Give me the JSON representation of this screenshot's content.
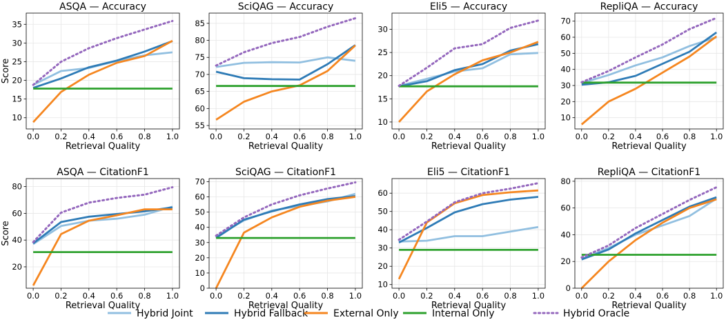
{
  "chart_data": [
    {
      "type": "line",
      "title": "ASQA — Accuracy",
      "xlabel": "Retrieval Quality",
      "ylabel": "Score",
      "x": [
        0.0,
        0.2,
        0.4,
        0.6,
        0.8,
        1.0
      ],
      "xticks": [
        "0.0",
        "0.2",
        "0.4",
        "0.6",
        "0.8",
        "1.0"
      ],
      "ylim": [
        7,
        38
      ],
      "yticks": [
        10,
        15,
        20,
        25,
        30,
        35
      ],
      "grid": true,
      "series": [
        {
          "name": "Hybrid Joint",
          "values": [
            18.8,
            22.5,
            23.3,
            25.2,
            26.7,
            27.5
          ]
        },
        {
          "name": "Hybrid Fallback",
          "values": [
            18.0,
            20.5,
            23.5,
            25.3,
            27.7,
            30.5
          ]
        },
        {
          "name": "External Only",
          "values": [
            8.8,
            16.9,
            21.5,
            24.7,
            26.5,
            30.6
          ]
        },
        {
          "name": "Internal Only",
          "values": [
            17.8,
            17.8,
            17.8,
            17.8,
            17.8,
            17.8
          ]
        },
        {
          "name": "Hybrid Oracle",
          "values": [
            18.8,
            25.0,
            28.6,
            31.3,
            33.6,
            35.9
          ]
        }
      ]
    },
    {
      "type": "line",
      "title": "SciQAG — Accuracy",
      "xlabel": "Retrieval Quality",
      "ylabel": "",
      "x": [
        0.0,
        0.2,
        0.4,
        0.6,
        0.8,
        1.0
      ],
      "xticks": [
        "0.0",
        "0.2",
        "0.4",
        "0.6",
        "0.8",
        "1.0"
      ],
      "ylim": [
        54,
        88
      ],
      "yticks": [
        55,
        60,
        65,
        70,
        75,
        80,
        85
      ],
      "grid": true,
      "series": [
        {
          "name": "Hybrid Joint",
          "values": [
            72.2,
            73.4,
            73.6,
            73.5,
            75.0,
            74.0
          ]
        },
        {
          "name": "Hybrid Fallback",
          "values": [
            70.8,
            68.9,
            68.6,
            68.5,
            73.0,
            78.6
          ]
        },
        {
          "name": "External Only",
          "values": [
            56.7,
            62.0,
            65.0,
            66.8,
            71.0,
            78.5
          ]
        },
        {
          "name": "Internal Only",
          "values": [
            66.6,
            66.6,
            66.6,
            66.6,
            66.6,
            66.6
          ]
        },
        {
          "name": "Hybrid Oracle",
          "values": [
            72.6,
            76.5,
            79.2,
            81.0,
            84.0,
            86.5
          ]
        }
      ]
    },
    {
      "type": "line",
      "title": "Eli5 — Accuracy",
      "xlabel": "Retrieval Quality",
      "ylabel": "",
      "x": [
        0.0,
        0.2,
        0.4,
        0.6,
        0.8,
        1.0
      ],
      "xticks": [
        "0.0",
        "0.2",
        "0.4",
        "0.6",
        "0.8",
        "1.0"
      ],
      "ylim": [
        8.5,
        33.5
      ],
      "yticks": [
        10,
        15,
        20,
        25,
        30
      ],
      "grid": true,
      "series": [
        {
          "name": "Hybrid Joint",
          "values": [
            17.8,
            19.3,
            20.9,
            21.6,
            24.6,
            24.9
          ]
        },
        {
          "name": "Hybrid Fallback",
          "values": [
            17.7,
            18.8,
            21.2,
            22.5,
            25.4,
            26.8
          ]
        },
        {
          "name": "External Only",
          "values": [
            10.0,
            16.6,
            20.3,
            23.3,
            25.0,
            27.3
          ]
        },
        {
          "name": "Internal Only",
          "values": [
            17.7,
            17.7,
            17.7,
            17.7,
            17.7,
            17.7
          ]
        },
        {
          "name": "Hybrid Oracle",
          "values": [
            17.8,
            21.7,
            25.9,
            26.8,
            30.3,
            31.9
          ]
        }
      ]
    },
    {
      "type": "line",
      "title": "RepliQA — Accuracy",
      "xlabel": "Retrieval Quality",
      "ylabel": "",
      "x": [
        0.0,
        0.2,
        0.4,
        0.6,
        0.8,
        1.0
      ],
      "xticks": [
        "0.0",
        "0.2",
        "0.4",
        "0.6",
        "0.8",
        "1.0"
      ],
      "ylim": [
        3,
        75
      ],
      "yticks": [
        10,
        20,
        30,
        40,
        50,
        60,
        70
      ],
      "grid": true,
      "series": [
        {
          "name": "Hybrid Joint",
          "values": [
            31.5,
            36.5,
            42.5,
            47.5,
            54.5,
            60.0
          ]
        },
        {
          "name": "Hybrid Fallback",
          "values": [
            30.5,
            32.0,
            36.0,
            43.5,
            51.0,
            63.0
          ]
        },
        {
          "name": "External Only",
          "values": [
            5.8,
            20.0,
            28.0,
            38.0,
            48.0,
            60.5
          ]
        },
        {
          "name": "Internal Only",
          "values": [
            31.8,
            31.8,
            31.8,
            31.8,
            31.8,
            31.8
          ]
        },
        {
          "name": "Hybrid Oracle",
          "values": [
            32.0,
            39.0,
            47.5,
            55.5,
            65.0,
            72.0
          ]
        }
      ]
    },
    {
      "type": "line",
      "title": "ASQA — CitationF1",
      "xlabel": "Retrieval Quality",
      "ylabel": "Score",
      "x": [
        0.0,
        0.2,
        0.4,
        0.6,
        0.8,
        1.0
      ],
      "xticks": [
        "0.0",
        "0.2",
        "0.4",
        "0.6",
        "0.8",
        "1.0"
      ],
      "ylim": [
        4,
        86
      ],
      "yticks": [
        20,
        40,
        60,
        80
      ],
      "grid": true,
      "series": [
        {
          "name": "Hybrid Joint",
          "values": [
            37.0,
            50.5,
            54.5,
            56.0,
            59.0,
            65.0
          ]
        },
        {
          "name": "Hybrid Fallback",
          "values": [
            37.5,
            53.5,
            57.5,
            59.5,
            61.5,
            64.5
          ]
        },
        {
          "name": "External Only",
          "values": [
            6.0,
            44.5,
            54.5,
            58.5,
            63.0,
            63.0
          ]
        },
        {
          "name": "Internal Only",
          "values": [
            31.0,
            31.0,
            31.0,
            31.0,
            31.0,
            31.0
          ]
        },
        {
          "name": "Hybrid Oracle",
          "values": [
            38.5,
            60.5,
            68.0,
            71.5,
            74.0,
            79.5
          ]
        }
      ]
    },
    {
      "type": "line",
      "title": "SciQAG — CitationF1",
      "xlabel": "Retrieval Quality",
      "ylabel": "",
      "x": [
        0.0,
        0.2,
        0.4,
        0.6,
        0.8,
        1.0
      ],
      "xticks": [
        "0.0",
        "0.2",
        "0.4",
        "0.6",
        "0.8",
        "1.0"
      ],
      "ylim": [
        0,
        72
      ],
      "yticks": [
        0,
        10,
        20,
        30,
        40,
        50,
        60,
        70
      ],
      "grid": true,
      "series": [
        {
          "name": "Hybrid Joint",
          "values": [
            34.0,
            44.5,
            51.0,
            54.0,
            57.0,
            62.0
          ]
        },
        {
          "name": "Hybrid Fallback",
          "values": [
            33.0,
            45.0,
            50.5,
            55.0,
            58.5,
            60.5
          ]
        },
        {
          "name": "External Only",
          "values": [
            0.0,
            36.5,
            46.5,
            53.5,
            57.5,
            60.0
          ]
        },
        {
          "name": "Internal Only",
          "values": [
            33.0,
            33.0,
            33.0,
            33.0,
            33.0,
            33.0
          ]
        },
        {
          "name": "Hybrid Oracle",
          "values": [
            34.5,
            46.5,
            55.0,
            61.0,
            65.5,
            69.5
          ]
        }
      ]
    },
    {
      "type": "line",
      "title": "Eli5 — CitationF1",
      "xlabel": "Retrieval Quality",
      "ylabel": "",
      "x": [
        0.0,
        0.2,
        0.4,
        0.6,
        0.8,
        1.0
      ],
      "xticks": [
        "0.0",
        "0.2",
        "0.4",
        "0.6",
        "0.8",
        "1.0"
      ],
      "ylim": [
        8,
        68
      ],
      "yticks": [
        10,
        20,
        30,
        40,
        50,
        60
      ],
      "grid": true,
      "series": [
        {
          "name": "Hybrid Joint",
          "values": [
            33.5,
            34.0,
            36.5,
            36.5,
            39.0,
            41.5
          ]
        },
        {
          "name": "Hybrid Fallback",
          "values": [
            33.0,
            41.0,
            49.5,
            54.0,
            56.5,
            58.0
          ]
        },
        {
          "name": "External Only",
          "values": [
            13.0,
            44.0,
            54.5,
            59.0,
            60.5,
            61.5
          ]
        },
        {
          "name": "Internal Only",
          "values": [
            29.0,
            29.0,
            29.0,
            29.0,
            29.0,
            29.0
          ]
        },
        {
          "name": "Hybrid Oracle",
          "values": [
            34.5,
            44.5,
            55.0,
            60.0,
            62.5,
            65.5
          ]
        }
      ]
    },
    {
      "type": "line",
      "title": "RepliQA — CitationF1",
      "xlabel": "Retrieval Quality",
      "ylabel": "",
      "x": [
        0.0,
        0.2,
        0.4,
        0.6,
        0.8,
        1.0
      ],
      "xticks": [
        "0.0",
        "0.2",
        "0.4",
        "0.6",
        "0.8",
        "1.0"
      ],
      "ylim": [
        0,
        82
      ],
      "yticks": [
        0,
        20,
        40,
        60,
        80
      ],
      "grid": true,
      "series": [
        {
          "name": "Hybrid Joint",
          "values": [
            22.0,
            30.0,
            40.0,
            47.0,
            54.0,
            67.0
          ]
        },
        {
          "name": "Hybrid Fallback",
          "values": [
            21.5,
            29.0,
            41.0,
            51.0,
            61.0,
            68.0
          ]
        },
        {
          "name": "External Only",
          "values": [
            0.0,
            20.0,
            36.0,
            49.0,
            60.0,
            66.5
          ]
        },
        {
          "name": "Internal Only",
          "values": [
            25.0,
            25.0,
            25.0,
            25.0,
            25.0,
            25.0
          ]
        },
        {
          "name": "Hybrid Oracle",
          "values": [
            23.0,
            32.0,
            45.0,
            55.5,
            66.0,
            75.5
          ]
        }
      ]
    }
  ],
  "legend": {
    "placement": "bottom-center",
    "items": [
      {
        "name": "Hybrid Joint",
        "color": "#91bfe0",
        "style": "solid"
      },
      {
        "name": "Hybrid Fallback",
        "color": "#2e7bb6",
        "style": "solid"
      },
      {
        "name": "External Only",
        "color": "#f5861f",
        "style": "solid"
      },
      {
        "name": "Internal Only",
        "color": "#2ca02c",
        "style": "solid"
      },
      {
        "name": "Hybrid Oracle",
        "color": "#9467bd",
        "style": "dotted"
      }
    ]
  }
}
